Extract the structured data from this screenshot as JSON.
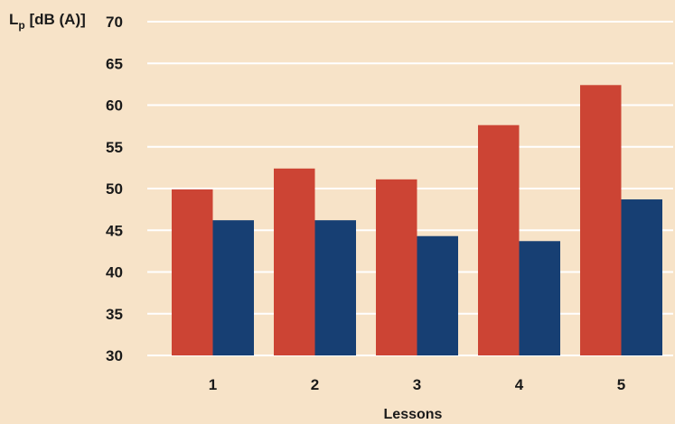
{
  "chart_data": {
    "type": "bar",
    "categories": [
      "1",
      "2",
      "3",
      "4",
      "5"
    ],
    "series": [
      {
        "values": [
          49.9,
          52.4,
          51.1,
          57.6,
          62.4
        ],
        "color": "#cc4434"
      },
      {
        "values": [
          46.2,
          46.2,
          44.3,
          43.7,
          48.7
        ],
        "color": "#173f73"
      }
    ],
    "xlabel": "Lessons",
    "ylabel": {
      "main": "L",
      "sub": "p",
      "rest": " [dB (A)]"
    },
    "ylim": [
      30,
      70
    ],
    "yticks": [
      "30",
      "35",
      "40",
      "45",
      "50",
      "55",
      "60",
      "65",
      "70"
    ],
    "grid": true,
    "colors": {
      "background": "#f7e3c8",
      "grid": "#ffffff"
    }
  }
}
